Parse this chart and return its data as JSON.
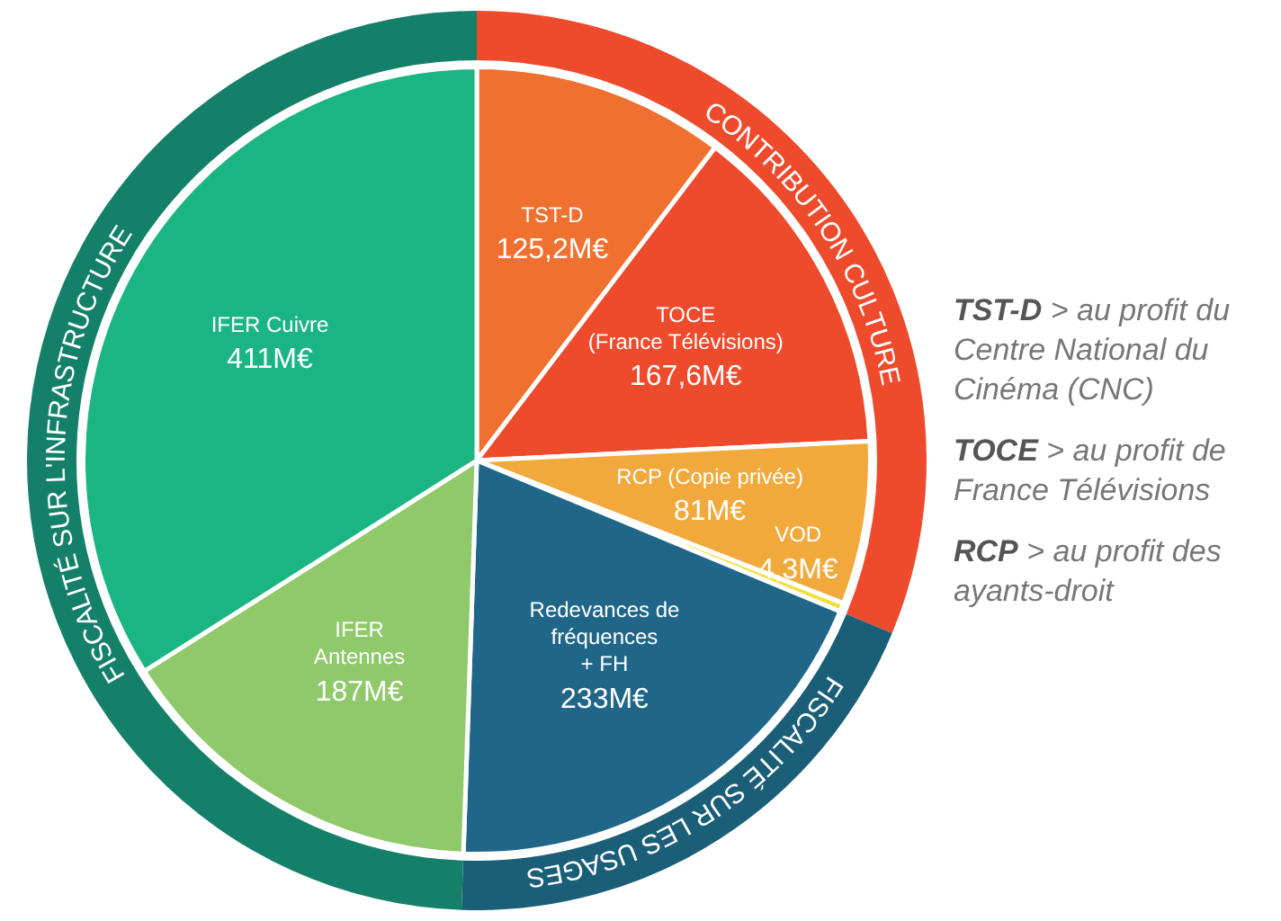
{
  "chart_data": [
    {
      "type": "donut",
      "categories": [
        "CONTRIBUTION CULTURE",
        "FISCALITÉ SUR LES USAGES",
        "FISCALITÉ SUR L'INFRASTRUCTURE"
      ],
      "values": [
        31.27,
        19.27,
        49.46
      ],
      "colors": [
        "#ee4a2c",
        "#1a5e78",
        "#15806a"
      ],
      "legend": false
    },
    {
      "type": "pie",
      "categories": [
        "TST-D",
        "TOCE\n(France Télévisions)",
        "RCP (Copie privée)",
        "VOD",
        "Redevances de\nfréquences\n+ FH",
        "IFER\nAntennes",
        "IFER Cuivre"
      ],
      "values": [
        125.2,
        167.6,
        81,
        4.3,
        233,
        187,
        411
      ],
      "value_labels": [
        "125,2M€",
        "167,6M€",
        "81M€",
        "4,3M€",
        "233M€",
        "187M€",
        "411M€"
      ],
      "colors": [
        "#f07030",
        "#ee4a2c",
        "#f2a93b",
        "#f2e03a",
        "#1f6688",
        "#8fc96a",
        "#1bb584"
      ],
      "legend": false,
      "annotations": [
        "TST-D > au profit du Centre National du Cinéma (CNC)",
        "TOCE > au profit de France Télévisions",
        "RCP > au profit des ayants-droit"
      ]
    }
  ]
}
